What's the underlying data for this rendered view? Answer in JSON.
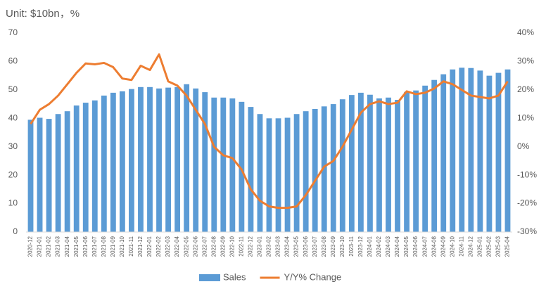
{
  "chart_data": {
    "type": "bar",
    "title": "Unit: $10bn，%",
    "categories": [
      "2020-12",
      "2021-01",
      "2021-02",
      "2021-03",
      "2021-04",
      "2021-05",
      "2021-06",
      "2021-07",
      "2021-08",
      "2021-09",
      "2021-10",
      "2021-11",
      "2021-12",
      "2022-01",
      "2022-02",
      "2022-03",
      "2022-04",
      "2022-05",
      "2022-06",
      "2022-07",
      "2022-08",
      "2022-09",
      "2022-10",
      "2022-11",
      "2022-12",
      "2023-01",
      "2023-02",
      "2023-03",
      "2023-04",
      "2023-05",
      "2023-06",
      "2023-07",
      "2023-08",
      "2023-09",
      "2023-10",
      "2023-11",
      "2023-12",
      "2024-01",
      "2024-02",
      "2024-03",
      "2024-04",
      "2024-05",
      "2024-06",
      "2024-07",
      "2024-08",
      "2024-09",
      "2024-10",
      "2024-11",
      "2024-12",
      "2025-01",
      "2025-02",
      "2025-03",
      "2025-04"
    ],
    "series": [
      {
        "name": "Sales",
        "type": "bar",
        "color": "#5b9bd5",
        "values": [
          39.5,
          40.2,
          39.8,
          41.5,
          42.5,
          44.5,
          45.5,
          46.3,
          48,
          49,
          49.5,
          50.3,
          51,
          51,
          50.5,
          50.8,
          51,
          52,
          50.5,
          49.2,
          47.3,
          47.3,
          47,
          45.8,
          44,
          41.5,
          40,
          40,
          40.2,
          41.5,
          42.5,
          43.3,
          44.2,
          45,
          46.7,
          48.2,
          49,
          48.3,
          47,
          47.3,
          46.5,
          49.3,
          49.8,
          51.5,
          53.5,
          55.5,
          57.2,
          57.8,
          57.7,
          56.8,
          55,
          56,
          57.2
        ]
      },
      {
        "name": "Y/Y% Change",
        "type": "line",
        "axis": "y2",
        "color": "#ed7d31",
        "values": [
          8,
          13,
          15,
          18,
          22,
          26,
          29.3,
          29,
          29.5,
          28,
          24,
          23.5,
          28.5,
          27,
          32.5,
          23,
          21.5,
          18,
          13,
          8,
          0,
          -3,
          -4,
          -8,
          -15,
          -19,
          -21,
          -21.5,
          -21.5,
          -21,
          -17,
          -12,
          -7,
          -5,
          0,
          6,
          12,
          15,
          16,
          15,
          15.5,
          19.5,
          18.5,
          19,
          20.5,
          23,
          22,
          20,
          18,
          17.5,
          17,
          18,
          23
        ]
      }
    ],
    "ylim": [
      0,
      70
    ],
    "yticks": [
      0,
      10,
      20,
      30,
      40,
      50,
      60,
      70
    ],
    "y2lim": [
      -30,
      40
    ],
    "y2ticks": [
      {
        "value": -30,
        "label": "-30%"
      },
      {
        "value": -20,
        "label": "-20%"
      },
      {
        "value": -10,
        "label": "-10%"
      },
      {
        "value": 0,
        "label": "0%"
      },
      {
        "value": 10,
        "label": "10%"
      },
      {
        "value": 20,
        "label": "20%"
      },
      {
        "value": 30,
        "label": "30%"
      },
      {
        "value": 40,
        "label": "40%"
      }
    ],
    "legend": "bottom"
  }
}
